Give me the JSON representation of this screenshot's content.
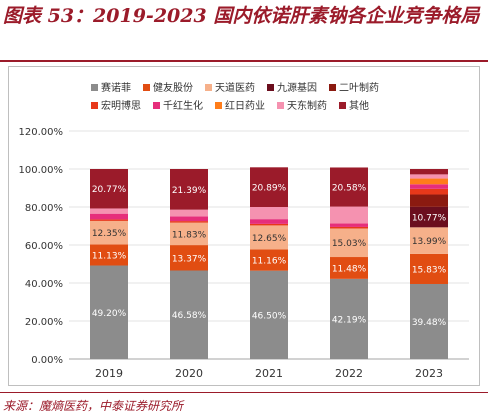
{
  "title": "图表 53：2019-2023 国内依诺肝素钠各企业竞争格局",
  "source": "来源：魔熵医药，中泰证券研究所",
  "chart_data": {
    "type": "bar",
    "stacked": true,
    "percent": true,
    "categories": [
      "2019",
      "2020",
      "2021",
      "2022",
      "2023"
    ],
    "ylim": [
      0,
      120
    ],
    "yticks": [
      "0.00%",
      "20.00%",
      "40.00%",
      "60.00%",
      "80.00%",
      "100.00%",
      "120.00%"
    ],
    "grid": true,
    "legend_position": "top",
    "series": [
      {
        "name": "赛诺菲",
        "color": "#8c8c8c",
        "values": [
          49.2,
          46.58,
          46.5,
          42.19,
          39.48
        ],
        "labels": [
          "49.20%",
          "46.58%",
          "46.50%",
          "42.19%",
          "39.48%"
        ]
      },
      {
        "name": "健友股份",
        "color": "#e14d12",
        "values": [
          11.13,
          13.37,
          11.16,
          11.48,
          15.83
        ],
        "labels": [
          "11.13%",
          "13.37%",
          "11.16%",
          "11.48%",
          "15.83%"
        ]
      },
      {
        "name": "天道医药",
        "color": "#f6b08a",
        "values": [
          12.35,
          11.83,
          12.65,
          15.03,
          13.99
        ],
        "labels": [
          "12.35%",
          "11.83%",
          "12.65%",
          "15.03%",
          "13.99%"
        ]
      },
      {
        "name": "九源基因",
        "color": "#6b0e1e",
        "values": [
          0,
          0,
          0,
          0,
          10.77
        ],
        "labels": [
          "",
          "",
          "",
          "",
          "10.77%"
        ]
      },
      {
        "name": "二叶制药",
        "color": "#8b1a10",
        "values": [
          0,
          0,
          0,
          0,
          6.5
        ],
        "labels": [
          "",
          "",
          "",
          "",
          ""
        ]
      },
      {
        "name": "宏明博思",
        "color": "#e8381a",
        "values": [
          0.8,
          0.8,
          0.8,
          0.8,
          3.0
        ],
        "labels": [
          "",
          "",
          "",
          "",
          ""
        ]
      },
      {
        "name": "千红生化",
        "color": "#e62e7b",
        "values": [
          3.0,
          2.5,
          2.5,
          1.8,
          2.4
        ],
        "labels": [
          "",
          "",
          "",
          "",
          ""
        ]
      },
      {
        "name": "红日药业",
        "color": "#ff7d1a",
        "values": [
          0,
          0,
          0,
          0,
          3.0
        ],
        "labels": [
          "",
          "",
          "",
          "",
          ""
        ]
      },
      {
        "name": "天东制药",
        "color": "#f592b0",
        "values": [
          2.75,
          3.53,
          6.39,
          8.92,
          2.2
        ],
        "labels": [
          "",
          "",
          "",
          "",
          ""
        ]
      },
      {
        "name": "其他",
        "color": "#9b1b2a",
        "values": [
          20.77,
          21.39,
          20.89,
          20.58,
          2.83
        ],
        "labels": [
          "20.77%",
          "21.39%",
          "20.89%",
          "20.58%",
          ""
        ]
      }
    ]
  }
}
